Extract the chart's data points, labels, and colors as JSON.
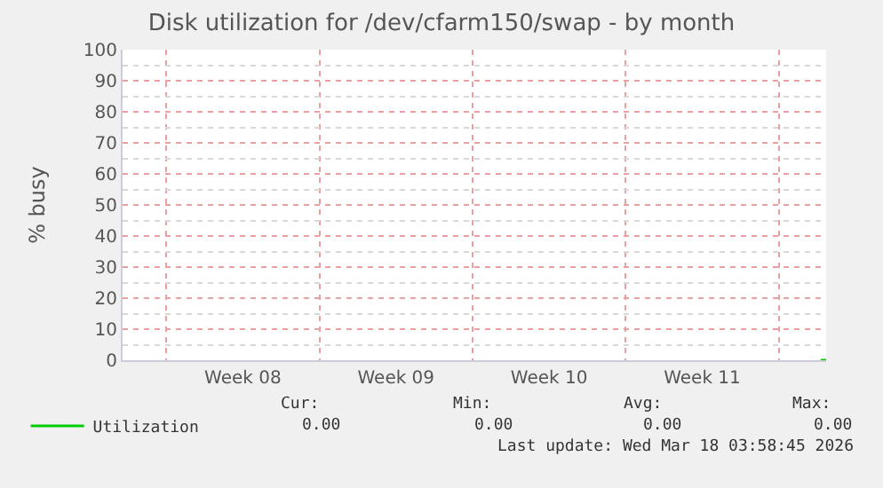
{
  "chart_data": {
    "type": "line",
    "title": "Disk utilization for /dev/cfarm150/swap - by month",
    "ylabel": "% busy",
    "x": [
      "2026-03-17T22:00",
      "2026-03-18T04:00"
    ],
    "series": [
      {
        "name": "Utilization",
        "color": "#00cc00",
        "values": [
          0,
          0
        ]
      }
    ],
    "xlim": [
      "2026-02-14T00:00",
      "2026-03-18T04:00"
    ],
    "xticks": [
      {
        "value": "2026-02-19T12:00",
        "label": "Week 08"
      },
      {
        "value": "2026-02-26T12:00",
        "label": "Week 09"
      },
      {
        "value": "2026-03-05T12:00",
        "label": "Week 10"
      },
      {
        "value": "2026-03-12T12:00",
        "label": "Week 11"
      }
    ],
    "ylim": [
      0,
      100
    ],
    "yticks": [
      0,
      10,
      20,
      30,
      40,
      50,
      60,
      70,
      80,
      90,
      100
    ],
    "grid": true,
    "legend": "bottom left",
    "marker": "none",
    "line_style": "solid",
    "annotations": [
      "Cur:",
      "Min:",
      "Avg:",
      "Max:",
      "0.00",
      "0.00",
      "0.00",
      "0.00",
      "Last update: Wed Mar 18 03:58:45 2026"
    ]
  }
}
